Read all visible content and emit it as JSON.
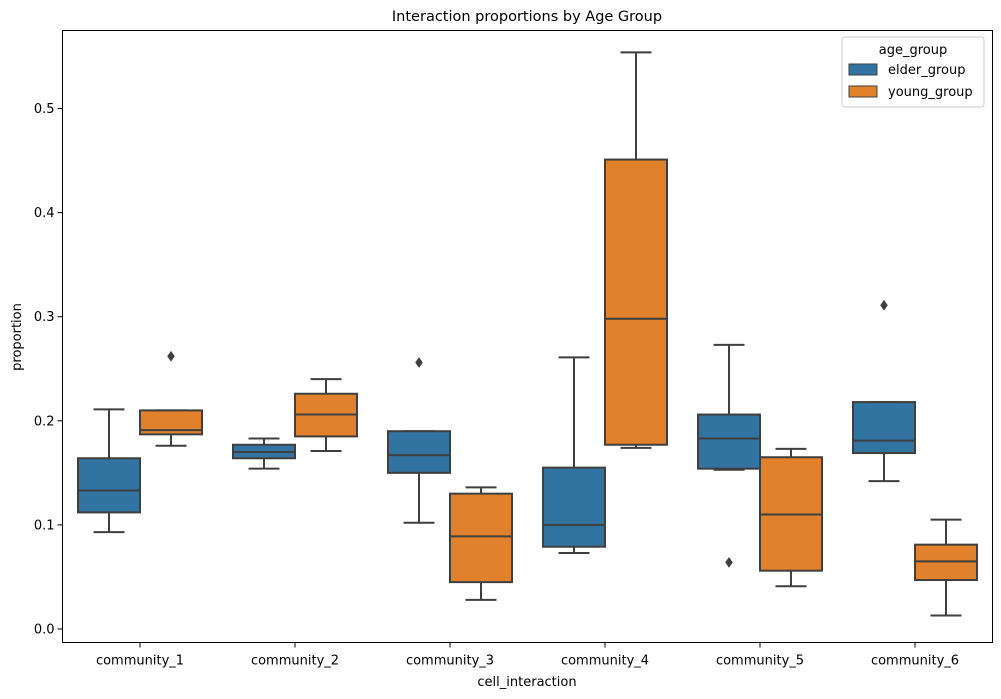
{
  "chart_data": {
    "type": "box",
    "title": "Interaction proportions by Age Group",
    "xlabel": "cell_interaction",
    "ylabel": "proportion",
    "ylim": [
      -0.013,
      0.575
    ],
    "yticks": [
      0.0,
      0.1,
      0.2,
      0.3,
      0.4,
      0.5
    ],
    "ytick_labels": [
      "0.0",
      "0.1",
      "0.2",
      "0.3",
      "0.4",
      "0.5"
    ],
    "categories": [
      "community_1",
      "community_2",
      "community_3",
      "community_4",
      "community_5",
      "community_6"
    ],
    "grid": false,
    "legend": {
      "title": "age_group",
      "position": "top-right"
    },
    "series": [
      {
        "name": "elder_group",
        "color": "#3274a1",
        "boxes": [
          {
            "whisker_low": 0.093,
            "q1": 0.112,
            "median": 0.133,
            "q3": 0.164,
            "whisker_high": 0.211,
            "outliers": []
          },
          {
            "whisker_low": 0.154,
            "q1": 0.164,
            "median": 0.17,
            "q3": 0.177,
            "whisker_high": 0.183,
            "outliers": []
          },
          {
            "whisker_low": 0.102,
            "q1": 0.15,
            "median": 0.167,
            "q3": 0.19,
            "whisker_high": 0.19,
            "outliers": [
              0.256
            ]
          },
          {
            "whisker_low": 0.073,
            "q1": 0.079,
            "median": 0.1,
            "q3": 0.155,
            "whisker_high": 0.261,
            "outliers": []
          },
          {
            "whisker_low": 0.153,
            "q1": 0.154,
            "median": 0.183,
            "q3": 0.206,
            "whisker_high": 0.273,
            "outliers": [
              0.064
            ]
          },
          {
            "whisker_low": 0.142,
            "q1": 0.169,
            "median": 0.181,
            "q3": 0.218,
            "whisker_high": 0.218,
            "outliers": [
              0.311
            ]
          }
        ]
      },
      {
        "name": "young_group",
        "color": "#e1812c",
        "boxes": [
          {
            "whisker_low": 0.176,
            "q1": 0.187,
            "median": 0.191,
            "q3": 0.21,
            "whisker_high": 0.21,
            "outliers": [
              0.262
            ]
          },
          {
            "whisker_low": 0.171,
            "q1": 0.185,
            "median": 0.206,
            "q3": 0.226,
            "whisker_high": 0.24,
            "outliers": []
          },
          {
            "whisker_low": 0.028,
            "q1": 0.045,
            "median": 0.089,
            "q3": 0.13,
            "whisker_high": 0.136,
            "outliers": []
          },
          {
            "whisker_low": 0.174,
            "q1": 0.177,
            "median": 0.298,
            "q3": 0.451,
            "whisker_high": 0.554,
            "outliers": []
          },
          {
            "whisker_low": 0.041,
            "q1": 0.056,
            "median": 0.11,
            "q3": 0.165,
            "whisker_high": 0.173,
            "outliers": []
          },
          {
            "whisker_low": 0.013,
            "q1": 0.047,
            "median": 0.065,
            "q3": 0.081,
            "whisker_high": 0.105,
            "outliers": []
          }
        ]
      }
    ]
  }
}
